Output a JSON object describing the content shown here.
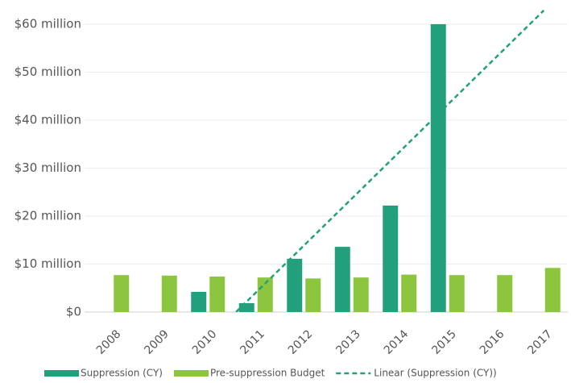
{
  "chart_data": {
    "type": "bar",
    "categories": [
      "2008",
      "2009",
      "2010",
      "2011",
      "2012",
      "2013",
      "2014",
      "2015",
      "2016",
      "2017"
    ],
    "series": [
      {
        "name": "Suppression (CY)",
        "color": "#22a07d",
        "values": [
          null,
          null,
          4.2,
          1.85,
          11.1,
          13.6,
          22.2,
          60,
          null,
          null
        ]
      },
      {
        "name": "Pre-suppression Budget",
        "color": "#8cc63f",
        "values": [
          7.7,
          7.6,
          7.4,
          7.2,
          7.0,
          7.2,
          7.8,
          7.7,
          7.7,
          9.2
        ]
      }
    ],
    "trendline": {
      "name": "Linear (Suppression (CY))",
      "color": "#22a07d"
    },
    "ylim": [
      0,
      63.7
    ],
    "yticks": [
      {
        "value": 0,
        "label": "$0"
      },
      {
        "value": 10,
        "label": "$10 million"
      },
      {
        "value": 20,
        "label": "$20 million"
      },
      {
        "value": 30,
        "label": "$30 million"
      },
      {
        "value": 40,
        "label": "$40 million"
      },
      {
        "value": 50,
        "label": "$50 million"
      },
      {
        "value": 60,
        "label": "$60 million"
      }
    ],
    "grid": true
  }
}
